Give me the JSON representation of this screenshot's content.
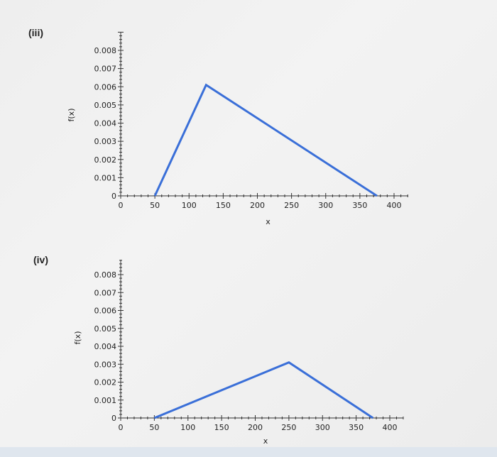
{
  "panels": [
    {
      "label": "(iii)"
    },
    {
      "label": "(iv)"
    }
  ],
  "chart_data": [
    {
      "type": "line",
      "title": "",
      "xlabel": "x",
      "ylabel": "f(x)",
      "xlim": [
        0,
        410
      ],
      "ylim": [
        0,
        0.009
      ],
      "xticks": [
        0,
        50,
        100,
        150,
        200,
        250,
        300,
        350,
        400
      ],
      "yticks": [
        0,
        0.001,
        0.002,
        0.003,
        0.004,
        0.005,
        0.006,
        0.007,
        0.008
      ],
      "x_tick_labels": [
        "0",
        "50",
        "100",
        "150",
        "200",
        "250",
        "300",
        "350",
        "400"
      ],
      "y_tick_labels": [
        "0",
        "0.001",
        "0.002",
        "0.003",
        "0.004",
        "0.005",
        "0.006",
        "0.007",
        "0.008"
      ],
      "series": [
        {
          "x": [
            50,
            125,
            375
          ],
          "y": [
            0,
            0.0061,
            0
          ]
        }
      ],
      "line_color": "#3a6fd8",
      "grid": false
    },
    {
      "type": "line",
      "title": "",
      "xlabel": "x",
      "ylabel": "f(x)",
      "xlim": [
        0,
        410
      ],
      "ylim": [
        0,
        0.009
      ],
      "xticks": [
        0,
        50,
        100,
        150,
        200,
        250,
        300,
        350,
        400
      ],
      "yticks": [
        0,
        0.001,
        0.002,
        0.003,
        0.004,
        0.005,
        0.006,
        0.007,
        0.008
      ],
      "x_tick_labels": [
        "0",
        "50",
        "100",
        "150",
        "200",
        "250",
        "300",
        "350",
        "400"
      ],
      "y_tick_labels": [
        "0",
        "0.001",
        "0.002",
        "0.003",
        "0.004",
        "0.005",
        "0.006",
        "0.007",
        "0.008"
      ],
      "series": [
        {
          "x": [
            50,
            250,
            375
          ],
          "y": [
            0,
            0.0031,
            0
          ]
        }
      ],
      "line_color": "#3a6fd8",
      "grid": false
    }
  ]
}
